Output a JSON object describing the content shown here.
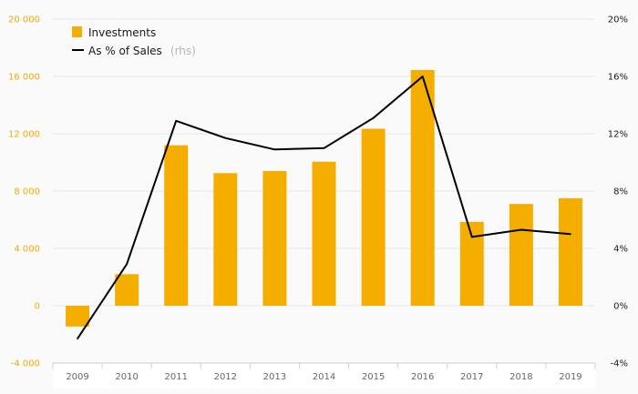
{
  "chart_data": {
    "type": "bar",
    "categories": [
      "2009",
      "2010",
      "2011",
      "2012",
      "2013",
      "2014",
      "2015",
      "2016",
      "2017",
      "2018",
      "2019"
    ],
    "series": [
      {
        "name": "Investments",
        "type": "bar",
        "axis": "left",
        "color": "#f5ad00",
        "values": [
          -1450,
          2200,
          11200,
          9250,
          9400,
          10050,
          12350,
          16450,
          5850,
          7100,
          7500
        ]
      },
      {
        "name": "As % of Sales",
        "name_suffix": "(rhs)",
        "type": "line",
        "axis": "right",
        "color": "#000000",
        "values": [
          -2.3,
          2.9,
          12.9,
          11.7,
          10.9,
          11.0,
          13.1,
          16.0,
          4.8,
          5.3,
          5.0
        ]
      }
    ],
    "y_left": {
      "range": [
        -4000,
        20000
      ],
      "ticks": [
        -4000,
        0,
        4000,
        8000,
        12000,
        16000,
        20000
      ],
      "tick_labels": [
        "-4 000",
        "0",
        "4 000",
        "8 000",
        "12 000",
        "16 000",
        "20 000"
      ]
    },
    "y_right": {
      "range": [
        -4,
        20
      ],
      "ticks": [
        -4,
        0,
        4,
        8,
        12,
        16,
        20
      ],
      "tick_labels": [
        "-4%",
        "0%",
        "4%",
        "8%",
        "12%",
        "16%",
        "20%"
      ]
    },
    "grid": true,
    "legend_position": "top-left",
    "colors": {
      "bar": "#f5ad00",
      "line": "#000000",
      "left_axis_text": "#f0ab00",
      "grid": "#e6e6e6"
    }
  }
}
